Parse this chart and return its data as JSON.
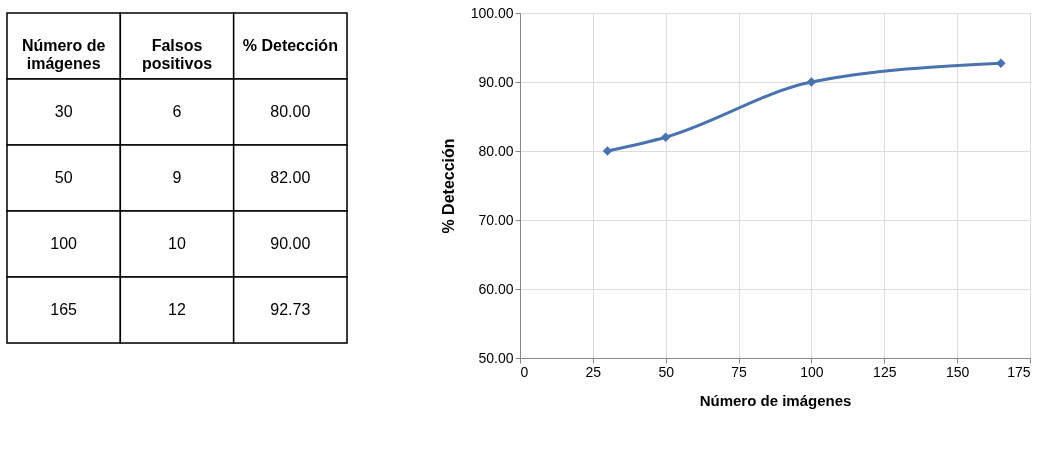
{
  "chart_data": [
    {
      "type": "other",
      "annotations": [
        "Número de\nimágenes",
        "Falsos\npositivos",
        "% Detección",
        "30",
        "6",
        "80.00",
        "50",
        "9",
        "82.00",
        "100",
        "10",
        "90.00",
        "165",
        "12",
        "92.73"
      ]
    },
    {
      "type": "line",
      "xlabel": "Número de imágenes",
      "ylabel": "% Detección",
      "x": [
        30,
        50,
        100,
        165
      ],
      "series": [
        {
          "color": "#4a72b0",
          "values": [
            80.0,
            82.0,
            90.0,
            92.73
          ]
        }
      ],
      "xlim": [
        0,
        175
      ],
      "xticks": [
        0,
        25,
        50,
        75,
        100,
        125,
        150,
        175
      ],
      "ylim": [
        50,
        100
      ],
      "yticks": [
        {
          "value": 50,
          "label": "50.00"
        },
        {
          "value": 60,
          "label": "60.00"
        },
        {
          "value": 70,
          "label": "70.00"
        },
        {
          "value": 80,
          "label": "80.00"
        },
        {
          "value": 90,
          "label": "90.00"
        },
        {
          "value": 100,
          "label": "100.00"
        }
      ],
      "grid": true,
      "marker": "diamond",
      "line_style": "solid"
    }
  ]
}
